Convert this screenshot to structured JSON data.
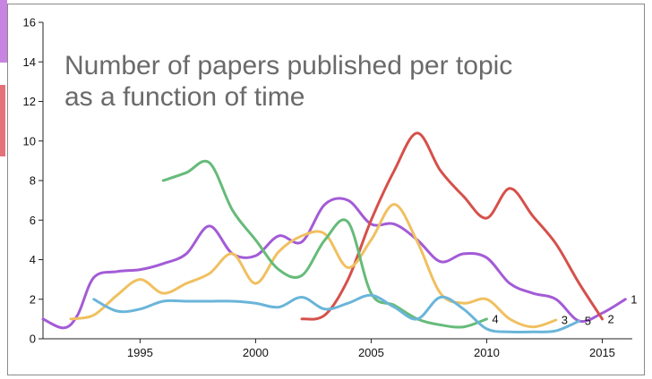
{
  "chart_data": {
    "type": "line",
    "title": "Number of papers published per topic as a function of time",
    "xlabel": "",
    "ylabel": "",
    "xlim": [
      1990.8,
      2016.3
    ],
    "ylim": [
      0,
      16
    ],
    "x_ticks": [
      1995,
      2000,
      2005,
      2010,
      2015
    ],
    "y_ticks": [
      0,
      2,
      4,
      6,
      8,
      10,
      12,
      14,
      16
    ],
    "grid": false,
    "series": [
      {
        "name": "1",
        "color": "#a35bd6",
        "points": [
          [
            1990.8,
            1.0
          ],
          [
            1991.7,
            0.55
          ],
          [
            1992.3,
            1.2
          ],
          [
            1993.0,
            3.1
          ],
          [
            1994.0,
            3.4
          ],
          [
            1995.0,
            3.5
          ],
          [
            1996.0,
            3.8
          ],
          [
            1997.0,
            4.3
          ],
          [
            1998.0,
            5.7
          ],
          [
            1999.0,
            4.3
          ],
          [
            2000.0,
            4.2
          ],
          [
            2001.0,
            5.2
          ],
          [
            2002.0,
            4.9
          ],
          [
            2003.0,
            6.8
          ],
          [
            2004.0,
            7.0
          ],
          [
            2005.0,
            5.8
          ],
          [
            2006.0,
            5.8
          ],
          [
            2007.0,
            5.0
          ],
          [
            2008.0,
            3.9
          ],
          [
            2009.0,
            4.3
          ],
          [
            2010.0,
            4.1
          ],
          [
            2011.0,
            2.8
          ],
          [
            2012.0,
            2.3
          ],
          [
            2013.0,
            2.0
          ],
          [
            2014.0,
            0.9
          ],
          [
            2015.0,
            1.3
          ],
          [
            2016.0,
            2.0
          ]
        ]
      },
      {
        "name": "2",
        "color": "#d6504a",
        "points": [
          [
            2002.0,
            1.0
          ],
          [
            2003.0,
            1.2
          ],
          [
            2004.0,
            3.0
          ],
          [
            2005.0,
            6.0
          ],
          [
            2006.0,
            8.5
          ],
          [
            2007.0,
            10.4
          ],
          [
            2008.0,
            8.5
          ],
          [
            2009.0,
            7.2
          ],
          [
            2010.0,
            6.1
          ],
          [
            2011.0,
            7.6
          ],
          [
            2012.0,
            6.2
          ],
          [
            2013.0,
            4.8
          ],
          [
            2014.0,
            2.8
          ],
          [
            2015.0,
            1.0
          ]
        ]
      },
      {
        "name": "3",
        "color": "#f0c060",
        "points": [
          [
            1992.0,
            1.0
          ],
          [
            1993.0,
            1.2
          ],
          [
            1994.0,
            2.2
          ],
          [
            1995.0,
            3.0
          ],
          [
            1996.0,
            2.3
          ],
          [
            1997.0,
            2.8
          ],
          [
            1998.0,
            3.3
          ],
          [
            1999.0,
            4.3
          ],
          [
            2000.0,
            2.8
          ],
          [
            2001.0,
            4.4
          ],
          [
            2002.0,
            5.2
          ],
          [
            2003.0,
            5.3
          ],
          [
            2004.0,
            3.6
          ],
          [
            2005.0,
            5.0
          ],
          [
            2006.0,
            6.8
          ],
          [
            2007.0,
            4.9
          ],
          [
            2008.0,
            2.3
          ],
          [
            2009.0,
            1.8
          ],
          [
            2010.0,
            2.0
          ],
          [
            2011.0,
            1.0
          ],
          [
            2012.0,
            0.6
          ],
          [
            2013.0,
            0.95
          ]
        ]
      },
      {
        "name": "4",
        "color": "#66bb7a",
        "points": [
          [
            1996.0,
            8.0
          ],
          [
            1997.0,
            8.4
          ],
          [
            1998.0,
            8.9
          ],
          [
            1999.0,
            6.5
          ],
          [
            2000.0,
            5.0
          ],
          [
            2001.0,
            3.5
          ],
          [
            2002.0,
            3.2
          ],
          [
            2003.0,
            5.0
          ],
          [
            2004.0,
            5.9
          ],
          [
            2005.0,
            2.3
          ],
          [
            2006.0,
            1.7
          ],
          [
            2007.0,
            1.0
          ],
          [
            2008.0,
            0.7
          ],
          [
            2009.0,
            0.6
          ],
          [
            2010.0,
            1.0
          ]
        ]
      },
      {
        "name": "5",
        "color": "#6ab5d9",
        "points": [
          [
            1993.0,
            2.0
          ],
          [
            1994.0,
            1.4
          ],
          [
            1995.0,
            1.5
          ],
          [
            1996.0,
            1.9
          ],
          [
            1997.0,
            1.9
          ],
          [
            1998.0,
            1.9
          ],
          [
            1999.0,
            1.9
          ],
          [
            2000.0,
            1.8
          ],
          [
            2001.0,
            1.6
          ],
          [
            2002.0,
            2.1
          ],
          [
            2003.0,
            1.5
          ],
          [
            2004.0,
            1.8
          ],
          [
            2005.0,
            2.2
          ],
          [
            2006.0,
            1.6
          ],
          [
            2007.0,
            1.0
          ],
          [
            2008.0,
            2.1
          ],
          [
            2009.0,
            1.5
          ],
          [
            2010.0,
            0.5
          ],
          [
            2011.0,
            0.35
          ],
          [
            2012.0,
            0.35
          ],
          [
            2013.0,
            0.4
          ],
          [
            2014.0,
            0.9
          ]
        ]
      }
    ]
  }
}
